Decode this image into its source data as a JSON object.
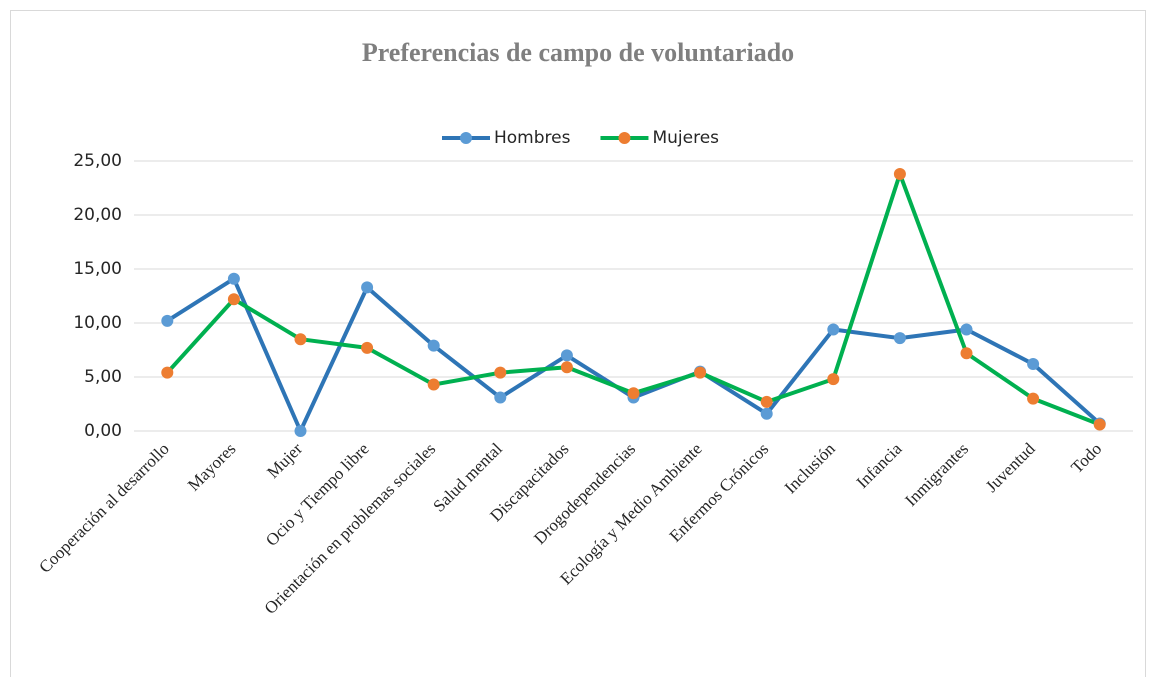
{
  "chart_data": {
    "type": "line",
    "title": "Preferencias de campo de voluntariado",
    "categories": [
      "Cooperación al desarrollo",
      "Mayores",
      "Mujer",
      "Ocio y Tiempo libre",
      "Orientación en problemas sociales",
      "Salud mental",
      "Discapacitados",
      "Drogodependencias",
      "Ecología y Medio Ambiente",
      "Enfermos Crónicos",
      "Inclusión",
      "Infancia",
      "Inmigrantes",
      "Juventud",
      "Todo"
    ],
    "series": [
      {
        "name": "Hombres",
        "color": "#2e75b6",
        "marker_color": "#5b9bd5",
        "values": [
          10.2,
          14.1,
          0,
          13.3,
          7.9,
          3.1,
          7.0,
          3.1,
          5.5,
          1.6,
          9.4,
          8.6,
          9.4,
          6.2,
          0.7
        ]
      },
      {
        "name": "Mujeres",
        "color": "#00b050",
        "marker_color": "#ed7d31",
        "values": [
          5.4,
          12.2,
          8.5,
          7.7,
          4.3,
          5.4,
          5.9,
          3.5,
          5.4,
          2.7,
          4.8,
          23.8,
          7.2,
          3.0,
          0.6
        ]
      }
    ],
    "ylim": [
      0,
      25
    ],
    "yticks": [
      {
        "value": 0,
        "label": "0,00"
      },
      {
        "value": 5,
        "label": "5,00"
      },
      {
        "value": 10,
        "label": "10,00"
      },
      {
        "value": 15,
        "label": "15,00"
      },
      {
        "value": 20,
        "label": "20,00"
      },
      {
        "value": 25,
        "label": "25,00"
      }
    ],
    "grid": true,
    "legend": "top"
  }
}
